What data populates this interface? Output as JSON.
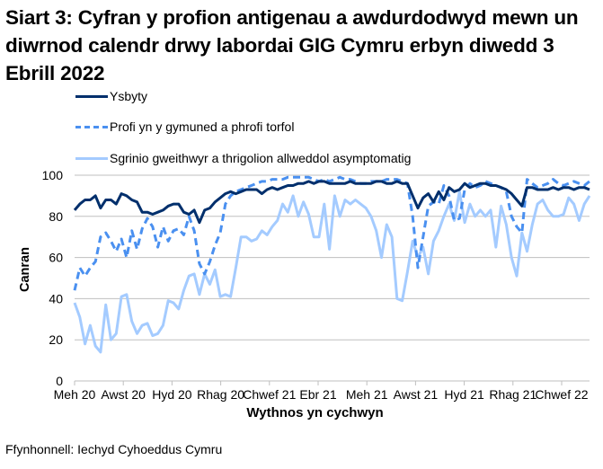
{
  "title": "Siart 3: Cyfran y profion antigenau a awdurdodwyd mewn un diwrnod calendr drwy labordai GIG Cymru erbyn diwedd 3 Ebrill 2022",
  "source": "Ffynhonnell: Iechyd Cyhoeddus Cymru",
  "legend": [
    {
      "label": "Ysbyty",
      "color": "#002f6c",
      "style": "solid"
    },
    {
      "label": "Profi yn y gymuned a phrofi torfol",
      "color": "#4a90f0",
      "style": "dashed"
    },
    {
      "label": "Sgrinio gweithwyr a thrigolion allweddol asymptomatig",
      "color": "#a4cbff",
      "style": "solid"
    }
  ],
  "chart_data": {
    "type": "line",
    "title": "Siart 3: Cyfran y profion antigenau a awdurdodwyd mewn un diwrnod calendr drwy labordai GIG Cymru erbyn diwedd 3 Ebrill 2022",
    "xlabel": "Wythnos yn cychwyn",
    "ylabel": "Canran",
    "ylim": [
      0,
      100
    ],
    "yticks": [
      0,
      20,
      40,
      60,
      80,
      100
    ],
    "xtick_labels": [
      "Meh 20",
      "Awst 20",
      "Hyd 20",
      "Rhag 20",
      "Chwef 21",
      "Ebr 21",
      "Meh 21",
      "Awst 21",
      "Hyd 21",
      "Rhag 21",
      "Chwef 22"
    ],
    "grid": true,
    "legend_position": "top",
    "x_points": 100,
    "series": [
      {
        "name": "Ysbyty",
        "values": [
          83,
          86,
          88,
          88,
          90,
          84,
          88,
          88,
          86,
          91,
          90,
          88,
          87,
          82,
          82,
          81,
          82,
          83,
          85,
          86,
          86,
          82,
          81,
          83,
          77,
          83,
          84,
          87,
          89,
          91,
          92,
          91,
          92,
          93,
          93,
          93,
          91,
          93,
          94,
          93,
          94,
          95,
          95,
          96,
          96,
          97,
          96,
          97,
          97,
          96,
          96,
          96,
          96,
          97,
          96,
          96,
          96,
          96,
          97,
          97,
          96,
          96,
          97,
          96,
          96,
          90,
          84,
          89,
          91,
          87,
          92,
          88,
          94,
          92,
          93,
          96,
          94,
          95,
          96,
          96,
          95,
          95,
          94,
          93,
          91,
          88,
          85,
          94,
          94,
          93,
          93,
          93,
          94,
          93,
          94,
          94,
          93,
          94,
          94,
          93
        ]
      },
      {
        "name": "Profi yn y gymuned a phrofi torfol",
        "values": [
          44,
          55,
          51,
          55,
          58,
          70,
          72,
          68,
          63,
          69,
          60,
          73,
          64,
          74,
          79,
          75,
          65,
          75,
          68,
          73,
          74,
          71,
          80,
          73,
          57,
          52,
          58,
          66,
          72,
          86,
          90,
          92,
          93,
          94,
          95,
          96,
          97,
          97,
          98,
          98,
          98,
          99,
          99,
          99,
          99,
          99,
          98,
          97,
          98,
          97,
          98,
          99,
          98,
          98,
          97,
          96,
          96,
          97,
          97,
          97,
          98,
          98,
          98,
          97,
          96,
          80,
          55,
          70,
          85,
          87,
          86,
          95,
          90,
          78,
          79,
          93,
          96,
          94,
          95,
          97,
          96,
          95,
          94,
          92,
          80,
          75,
          72,
          98,
          96,
          94,
          95,
          96,
          98,
          96,
          95,
          96,
          97,
          96,
          95,
          97
        ]
      },
      {
        "name": "Sgrinio gweithwyr a thrigolion allweddol asymptomatig",
        "values": [
          38,
          31,
          18,
          27,
          17,
          14,
          37,
          20,
          23,
          41,
          42,
          29,
          23,
          27,
          28,
          22,
          23,
          27,
          39,
          38,
          35,
          44,
          51,
          52,
          42,
          52,
          47,
          54,
          41,
          42,
          41,
          55,
          70,
          70,
          68,
          69,
          73,
          71,
          75,
          78,
          86,
          82,
          90,
          80,
          87,
          81,
          70,
          70,
          86,
          64,
          90,
          80,
          88,
          86,
          88,
          86,
          84,
          80,
          73,
          60,
          76,
          70,
          40,
          39,
          53,
          68,
          60,
          65,
          52,
          68,
          73,
          80,
          86,
          78,
          92,
          77,
          86,
          80,
          83,
          80,
          83,
          65,
          85,
          76,
          60,
          51,
          72,
          63,
          76,
          86,
          88,
          83,
          80,
          80,
          81,
          89,
          86,
          78,
          86,
          90
        ]
      }
    ]
  }
}
